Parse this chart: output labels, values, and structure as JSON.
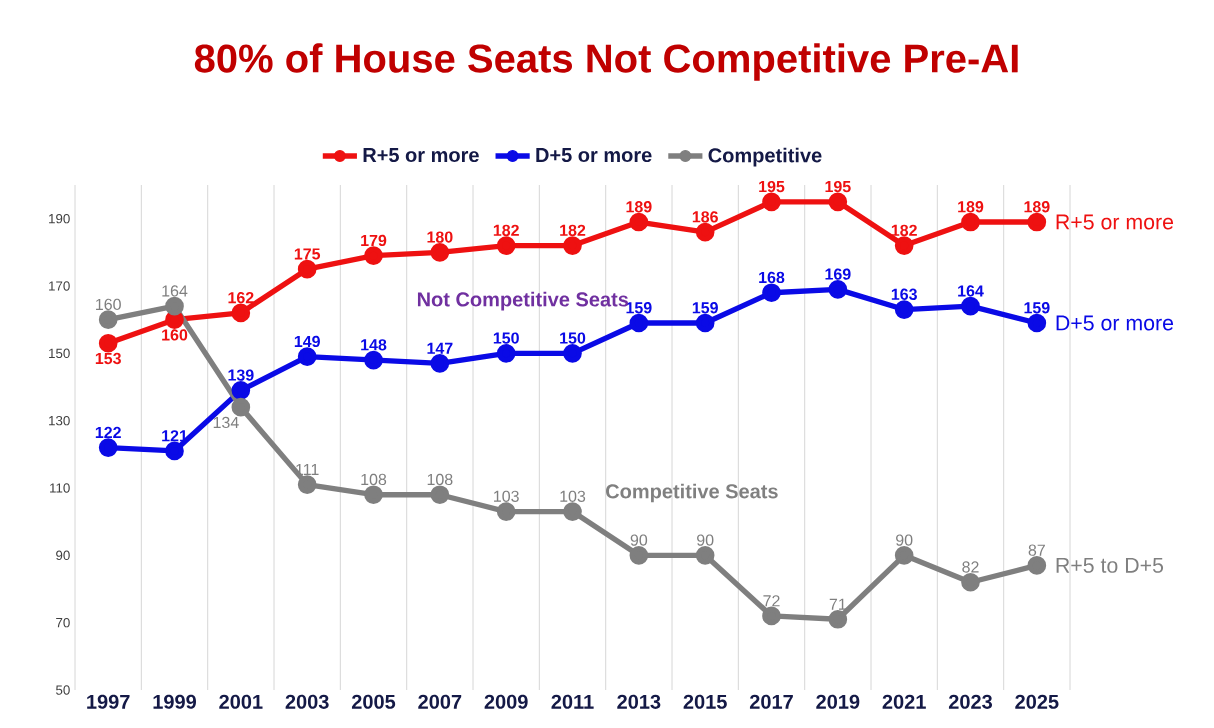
{
  "chart_data": {
    "type": "line",
    "title": "80% of House Seats Not Competitive Pre-AI",
    "categories": [
      "1997",
      "1999",
      "2001",
      "2003",
      "2005",
      "2007",
      "2009",
      "2011",
      "2013",
      "2015",
      "2017",
      "2019",
      "2021",
      "2023",
      "2025"
    ],
    "series": [
      {
        "name": "R+5 or more",
        "color": "#ee1111",
        "values": [
          153,
          160,
          162,
          175,
          179,
          180,
          182,
          182,
          189,
          186,
          195,
          195,
          182,
          189,
          189
        ]
      },
      {
        "name": "D+5 or more",
        "color": "#0a0ae6",
        "values": [
          122,
          121,
          139,
          149,
          148,
          147,
          150,
          150,
          159,
          159,
          168,
          169,
          163,
          164,
          159
        ]
      },
      {
        "name": "Competitive",
        "color": "#7f7f7f",
        "values": [
          160,
          164,
          134,
          111,
          108,
          108,
          103,
          103,
          90,
          90,
          72,
          71,
          90,
          82,
          87
        ]
      }
    ],
    "ylim": [
      50,
      200
    ],
    "yticks": [
      50,
      70,
      90,
      110,
      130,
      150,
      170,
      190
    ],
    "annotations": [
      "Not Competitive Seats",
      "Competitive Seats",
      {
        "text": "R+5 or more",
        "x": "2025",
        "y": 189
      },
      {
        "text": "D+5 or more",
        "x": "2025",
        "y": 159
      },
      {
        "text": "R+5 to D+5",
        "x": "2025",
        "y": 87
      }
    ],
    "data_labels": true,
    "legend": "top",
    "grid": "x",
    "marker": "circle",
    "line_style": "solid"
  }
}
